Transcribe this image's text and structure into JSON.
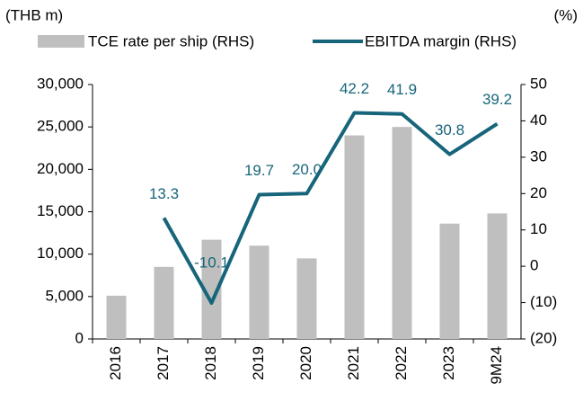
{
  "chart_data": {
    "type": "bar_line",
    "y_axis_label": "(THB m)",
    "y2_axis_label": "(%)",
    "categories": [
      "2016",
      "2017",
      "2018",
      "2019",
      "2020",
      "2021",
      "2022",
      "2023",
      "9M24"
    ],
    "series": [
      {
        "name": "TCE rate per ship (RHS)",
        "color": "#bfbfbf",
        "type": "bar",
        "axis": "y",
        "values": [
          5100,
          8500,
          11700,
          11000,
          9500,
          24000,
          25000,
          13600,
          14800
        ]
      },
      {
        "name": "EBITDA margin (RHS)",
        "color": "#17657a",
        "type": "line",
        "axis": "y2",
        "values": [
          null,
          13.3,
          -10.1,
          19.7,
          20.0,
          42.2,
          41.9,
          30.8,
          39.2
        ],
        "value_labels": [
          null,
          "13.3",
          "-10.1",
          "19.7",
          "20.0",
          "42.2",
          "41.9",
          "30.8",
          "39.2"
        ]
      }
    ],
    "ylim": [
      0,
      30000
    ],
    "yticks": [
      0,
      {
        "value": 5000,
        "label": "5,000"
      },
      {
        "value": 10000,
        "label": "10,000"
      },
      {
        "value": 15000,
        "label": "15,000"
      },
      {
        "value": 20000,
        "label": "20,000"
      },
      {
        "value": 25000,
        "label": "25,000"
      },
      {
        "value": 30000,
        "label": "30,000"
      }
    ],
    "y2lim": [
      -20,
      50
    ],
    "y2ticks": [
      {
        "value": -20,
        "label": "(20)"
      },
      {
        "value": -10,
        "label": "(10)"
      },
      0,
      10,
      20,
      30,
      40,
      50
    ],
    "grid": false,
    "legend": "top"
  }
}
